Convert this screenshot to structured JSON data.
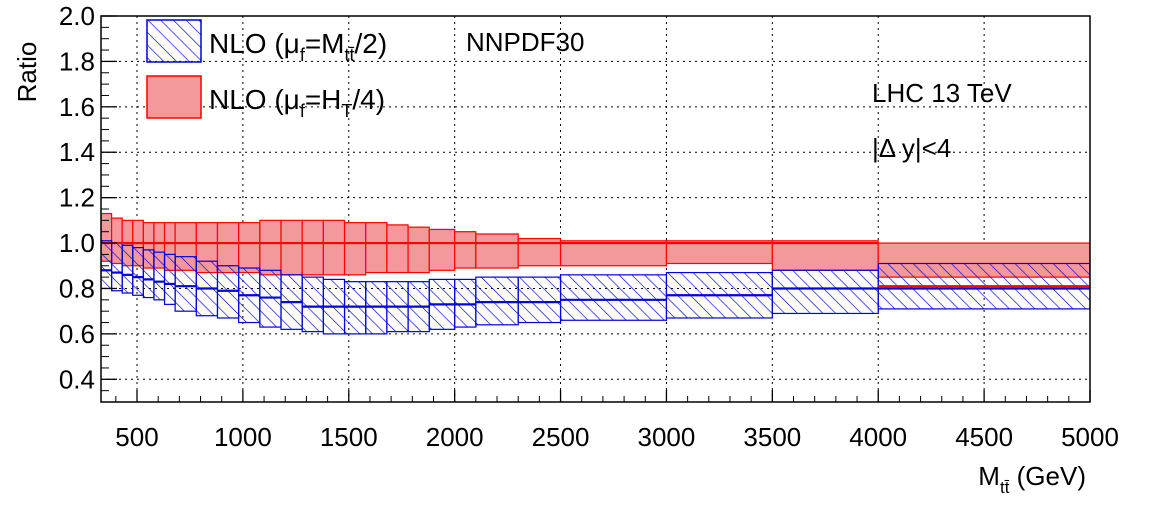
{
  "chart_data": {
    "type": "area",
    "x_axis": {
      "label": "M",
      "label_subscript": "tt̄",
      "label_suffix": " (GeV)",
      "range": [
        330,
        5000
      ],
      "ticks": [
        500,
        1000,
        1500,
        2000,
        2500,
        3000,
        3500,
        4000,
        4500,
        5000
      ]
    },
    "y_axis": {
      "label": "Ratio",
      "range": [
        0.3,
        2.0
      ],
      "ticks": [
        "0.4",
        "0.6",
        "0.8",
        "1.0",
        "1.2",
        "1.4",
        "1.6",
        "1.8",
        "2.0"
      ]
    },
    "grid": true,
    "legend": {
      "placement": "top-left",
      "entries": [
        {
          "series": 0,
          "pre": "NLO (μ",
          "sub": "f",
          "mid": "=M",
          "sub2": "tt̄",
          "post": "/2)"
        },
        {
          "series": 1,
          "pre": "NLO (μ",
          "sub": "f",
          "mid": "=H",
          "sub2": "T",
          "post": "/4)"
        }
      ]
    },
    "annotations": [
      "NNPDF30",
      "LHC 13 TeV",
      "|Δ y|<4"
    ],
    "bins": [
      [
        330,
        380
      ],
      [
        380,
        430
      ],
      [
        430,
        480
      ],
      [
        480,
        530
      ],
      [
        530,
        580
      ],
      [
        580,
        630
      ],
      [
        630,
        680
      ],
      [
        680,
        780
      ],
      [
        780,
        880
      ],
      [
        880,
        980
      ],
      [
        980,
        1080
      ],
      [
        1080,
        1180
      ],
      [
        1180,
        1280
      ],
      [
        1280,
        1380
      ],
      [
        1380,
        1480
      ],
      [
        1480,
        1580
      ],
      [
        1580,
        1680
      ],
      [
        1680,
        1780
      ],
      [
        1780,
        1880
      ],
      [
        1880,
        2000
      ],
      [
        2000,
        2100
      ],
      [
        2100,
        2300
      ],
      [
        2300,
        2500
      ],
      [
        2500,
        3000
      ],
      [
        3000,
        3500
      ],
      [
        3500,
        4000
      ],
      [
        4000,
        5000
      ]
    ],
    "series": [
      {
        "name": "NLO (μf=Mtt̄/2)",
        "style": "hatched",
        "color": "#0000dd",
        "central": [
          0.88,
          0.87,
          0.86,
          0.85,
          0.84,
          0.83,
          0.82,
          0.81,
          0.8,
          0.79,
          0.77,
          0.76,
          0.74,
          0.72,
          0.72,
          0.72,
          0.72,
          0.72,
          0.72,
          0.73,
          0.73,
          0.74,
          0.74,
          0.75,
          0.77,
          0.8,
          0.8
        ],
        "upper": [
          1.01,
          1.0,
          0.99,
          0.98,
          0.97,
          0.96,
          0.95,
          0.94,
          0.92,
          0.9,
          0.89,
          0.88,
          0.86,
          0.85,
          0.84,
          0.83,
          0.83,
          0.83,
          0.83,
          0.84,
          0.84,
          0.85,
          0.85,
          0.86,
          0.87,
          0.88,
          0.91
        ],
        "lower": [
          0.8,
          0.79,
          0.78,
          0.77,
          0.76,
          0.75,
          0.73,
          0.7,
          0.68,
          0.67,
          0.65,
          0.63,
          0.62,
          0.61,
          0.6,
          0.6,
          0.6,
          0.61,
          0.61,
          0.62,
          0.63,
          0.64,
          0.65,
          0.66,
          0.67,
          0.69,
          0.71
        ]
      },
      {
        "name": "NLO (μf=HT/4)",
        "style": "filled",
        "color": "#ff0000",
        "fill": "#f4989c",
        "central": [
          1.0,
          1.0,
          1.0,
          1.0,
          1.0,
          1.0,
          1.0,
          1.0,
          1.0,
          1.0,
          1.0,
          1.0,
          1.0,
          1.0,
          1.0,
          1.0,
          1.0,
          1.0,
          1.0,
          1.0,
          1.0,
          1.0,
          1.0,
          1.0,
          1.0,
          1.0,
          0.81
        ],
        "upper": [
          1.13,
          1.11,
          1.1,
          1.1,
          1.09,
          1.09,
          1.09,
          1.09,
          1.09,
          1.09,
          1.09,
          1.1,
          1.1,
          1.1,
          1.1,
          1.09,
          1.09,
          1.08,
          1.07,
          1.06,
          1.05,
          1.04,
          1.02,
          1.01,
          1.01,
          1.01,
          1.0
        ],
        "lower": [
          0.92,
          0.91,
          0.9,
          0.9,
          0.89,
          0.89,
          0.88,
          0.88,
          0.87,
          0.87,
          0.87,
          0.86,
          0.86,
          0.86,
          0.86,
          0.86,
          0.87,
          0.87,
          0.87,
          0.88,
          0.89,
          0.89,
          0.9,
          0.9,
          0.91,
          0.88,
          0.85
        ]
      }
    ]
  }
}
